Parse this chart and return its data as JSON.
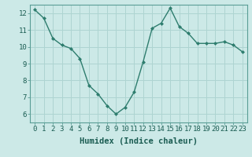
{
  "x": [
    0,
    1,
    2,
    3,
    4,
    5,
    6,
    7,
    8,
    9,
    10,
    11,
    12,
    13,
    14,
    15,
    16,
    17,
    18,
    19,
    20,
    21,
    22,
    23
  ],
  "y": [
    12.2,
    11.7,
    10.5,
    10.1,
    9.9,
    9.3,
    7.7,
    7.2,
    6.5,
    6.0,
    6.4,
    7.3,
    9.1,
    11.1,
    11.4,
    12.3,
    11.2,
    10.8,
    10.2,
    10.2,
    10.2,
    10.3,
    10.1,
    9.7
  ],
  "line_color": "#2e7d6e",
  "marker_color": "#2e7d6e",
  "bg_color": "#cce9e7",
  "grid_color": "#aed4d1",
  "xlabel": "Humidex (Indice chaleur)",
  "xlim": [
    -0.5,
    23.5
  ],
  "ylim": [
    5.5,
    12.5
  ],
  "yticks": [
    6,
    7,
    8,
    9,
    10,
    11,
    12
  ],
  "xtick_labels": [
    "0",
    "1",
    "2",
    "3",
    "4",
    "5",
    "6",
    "7",
    "8",
    "9",
    "10",
    "11",
    "12",
    "13",
    "14",
    "15",
    "16",
    "17",
    "18",
    "19",
    "20",
    "21",
    "22",
    "23"
  ],
  "xlabel_fontsize": 7.5,
  "tick_fontsize": 6.5
}
